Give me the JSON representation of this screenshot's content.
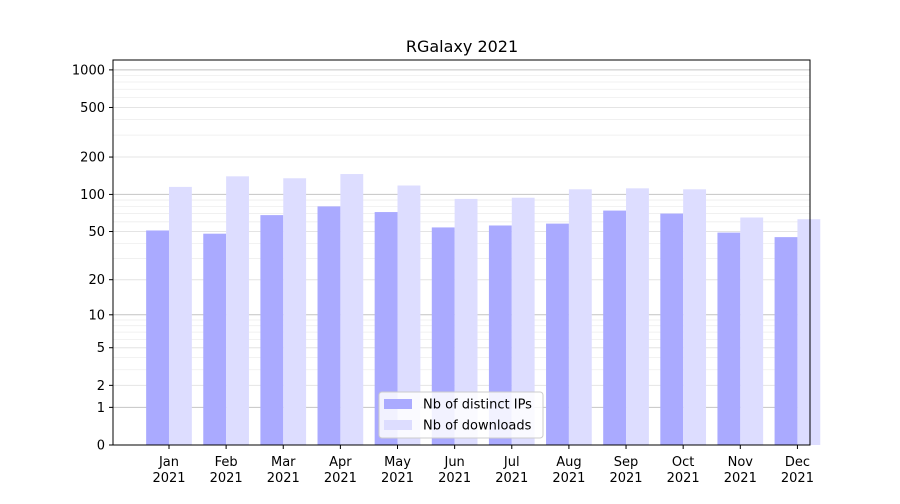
{
  "chart_data": {
    "type": "bar",
    "title": "RGalaxy 2021",
    "xlabel": "",
    "ylabel": "",
    "y_scale": "log(1+y)",
    "ylim": [
      0,
      1200
    ],
    "y_ticks": [
      {
        "value": 0,
        "label": "0"
      },
      {
        "value": 1,
        "label": "1"
      },
      {
        "value": 2,
        "label": "2"
      },
      {
        "value": 5,
        "label": "5"
      },
      {
        "value": 10,
        "label": "10"
      },
      {
        "value": 20,
        "label": "20"
      },
      {
        "value": 50,
        "label": "50"
      },
      {
        "value": 100,
        "label": "100"
      },
      {
        "value": 200,
        "label": "200"
      },
      {
        "value": 500,
        "label": "500"
      },
      {
        "value": 1000,
        "label": "1000"
      }
    ],
    "grid": true,
    "categories": [
      {
        "month": "Jan",
        "year": "2021"
      },
      {
        "month": "Feb",
        "year": "2021"
      },
      {
        "month": "Mar",
        "year": "2021"
      },
      {
        "month": "Apr",
        "year": "2021"
      },
      {
        "month": "May",
        "year": "2021"
      },
      {
        "month": "Jun",
        "year": "2021"
      },
      {
        "month": "Jul",
        "year": "2021"
      },
      {
        "month": "Aug",
        "year": "2021"
      },
      {
        "month": "Sep",
        "year": "2021"
      },
      {
        "month": "Oct",
        "year": "2021"
      },
      {
        "month": "Nov",
        "year": "2021"
      },
      {
        "month": "Dec",
        "year": "2021"
      }
    ],
    "series": [
      {
        "name": "Nb of distinct IPs",
        "color": "#aaaaff",
        "values": [
          51,
          48,
          68,
          80,
          72,
          54,
          56,
          58,
          74,
          70,
          49,
          45
        ]
      },
      {
        "name": "Nb of downloads",
        "color": "#ddddff",
        "values": [
          115,
          140,
          135,
          146,
          118,
          92,
          94,
          110,
          112,
          110,
          65,
          63
        ]
      }
    ],
    "legend": {
      "position": "lower-center"
    }
  }
}
